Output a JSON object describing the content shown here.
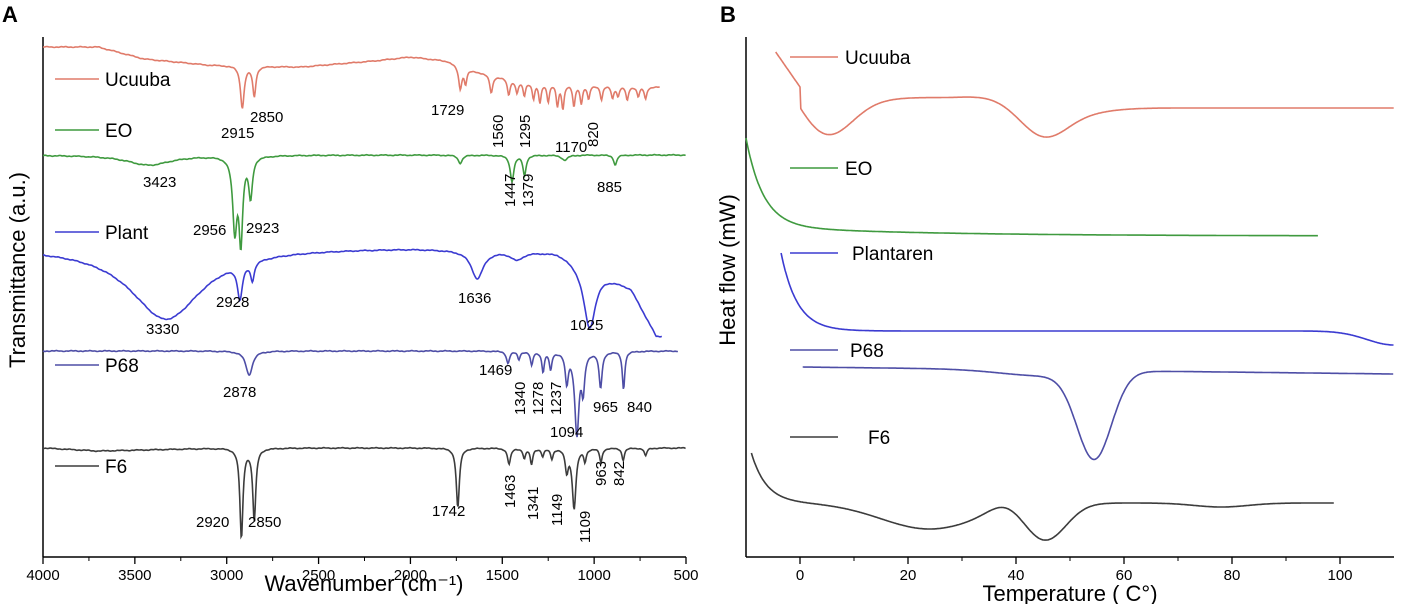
{
  "chart_data": [
    {
      "panel": "A",
      "type": "line",
      "title": "",
      "xlabel": "Wavenumber (cm⁻¹)",
      "ylabel": "Transmittance (a.u.)",
      "xlim": [
        4000,
        500
      ],
      "x_ticks": [
        "4000",
        "3500",
        "3000",
        "2500",
        "2000",
        "1500",
        "1000",
        "500"
      ],
      "legend": "inline",
      "series": [
        {
          "name": "Ucuuba",
          "color": "#e07b6a",
          "peaks": [
            "2915",
            "2850",
            "1729",
            "1560",
            "1295",
            "1170",
            "820"
          ]
        },
        {
          "name": "EO",
          "color": "#3f9a3f",
          "peaks": [
            "3423",
            "2956",
            "2923",
            "1447",
            "1379",
            "885"
          ]
        },
        {
          "name": "Plant",
          "color": "#3b3bd1",
          "peaks": [
            "3330",
            "2928",
            "1636",
            "1025"
          ]
        },
        {
          "name": "P68",
          "color": "#4e4ea6",
          "peaks": [
            "2878",
            "1469",
            "1340",
            "1278",
            "1237",
            "1094",
            "965",
            "840"
          ]
        },
        {
          "name": "F6",
          "color": "#3c3c3c",
          "peaks": [
            "2920",
            "2850",
            "1742",
            "1463",
            "1341",
            "1149",
            "1109",
            "963",
            "842"
          ]
        }
      ]
    },
    {
      "panel": "B",
      "type": "line",
      "title": "",
      "xlabel": "Temperature ( C°)",
      "ylabel": "Heat flow (mW)",
      "xlim": [
        -10,
        110
      ],
      "x_ticks": [
        "0",
        "20",
        "40",
        "60",
        "80",
        "100"
      ],
      "legend": "inline",
      "series": [
        {
          "name": "Ucuuba",
          "color": "#e07b6a"
        },
        {
          "name": "EO",
          "color": "#3f9a3f"
        },
        {
          "name": "Plantaren",
          "color": "#3b3bd1"
        },
        {
          "name": "P68",
          "color": "#4e4ea6"
        },
        {
          "name": "F6",
          "color": "#3c3c3c"
        }
      ]
    }
  ]
}
